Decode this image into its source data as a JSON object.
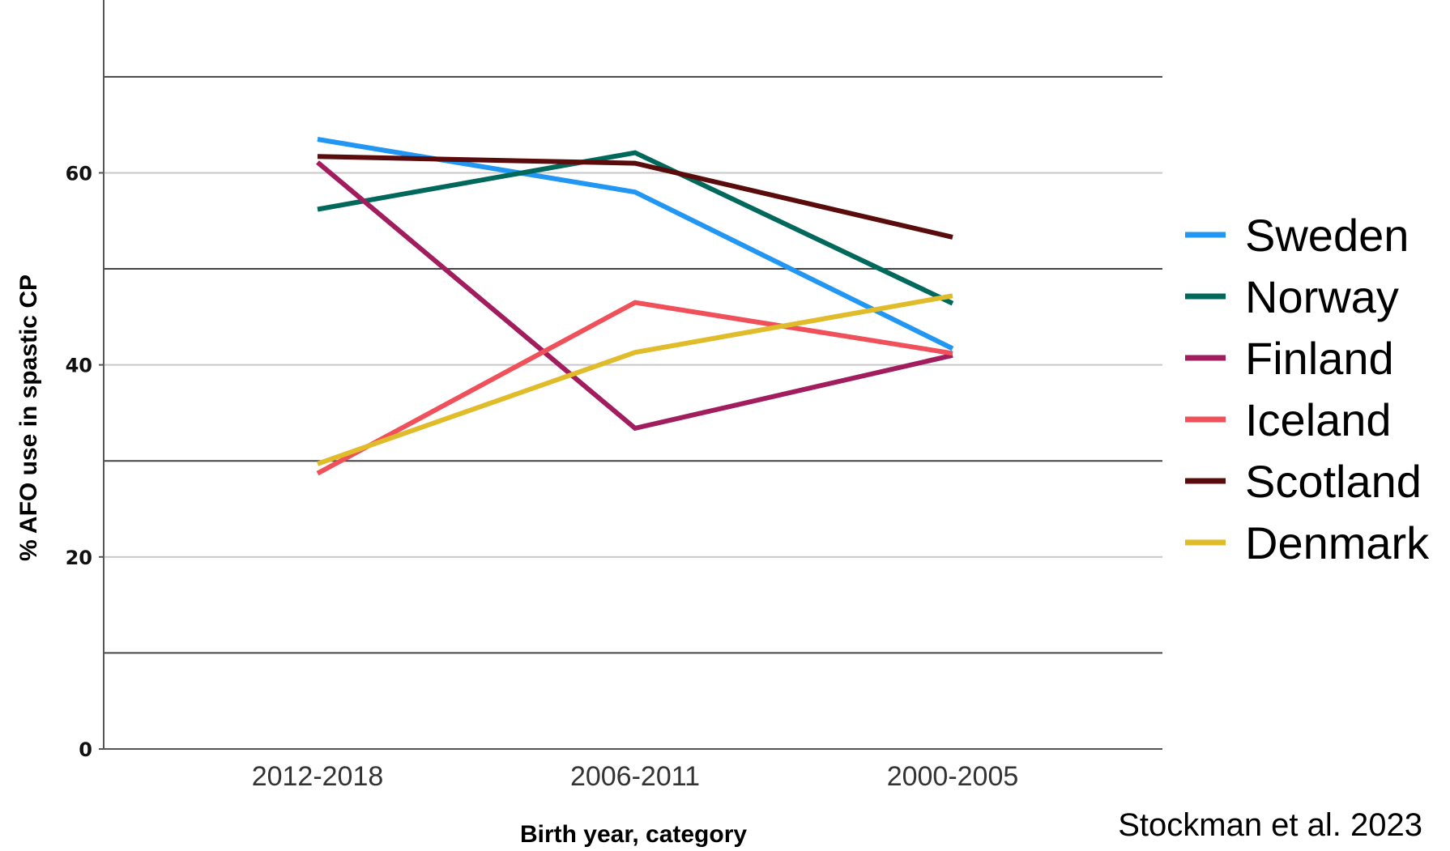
{
  "chart_data": {
    "type": "line",
    "title": "",
    "xlabel": "Birth year, category",
    "ylabel": "% AFO use in spastic CP",
    "categories": [
      "2012-2018",
      "2006-2011",
      "2000-2005"
    ],
    "ylim": [
      0,
      78
    ],
    "yticks": [
      0,
      20,
      40,
      60
    ],
    "gridlines": [
      10,
      20,
      30,
      40,
      50,
      60,
      70
    ],
    "grid": true,
    "legend_position": "right",
    "series": [
      {
        "name": "Sweden",
        "color": "#2196F3",
        "values": [
          63.5,
          58.0,
          41.7
        ]
      },
      {
        "name": "Norway",
        "color": "#00695C",
        "values": [
          56.2,
          62.1,
          46.4
        ]
      },
      {
        "name": "Finland",
        "color": "#A11D5E",
        "values": [
          61.1,
          33.4,
          41.0
        ]
      },
      {
        "name": "Iceland",
        "color": "#F0505A",
        "values": [
          28.7,
          46.5,
          41.2
        ]
      },
      {
        "name": "Scotland",
        "color": "#5A0B0B",
        "values": [
          61.7,
          61.0,
          53.3
        ]
      },
      {
        "name": "Denmark",
        "color": "#E0BB2A",
        "values": [
          29.7,
          41.3,
          47.2
        ]
      }
    ],
    "source_note": "Stockman et al. 2023"
  }
}
